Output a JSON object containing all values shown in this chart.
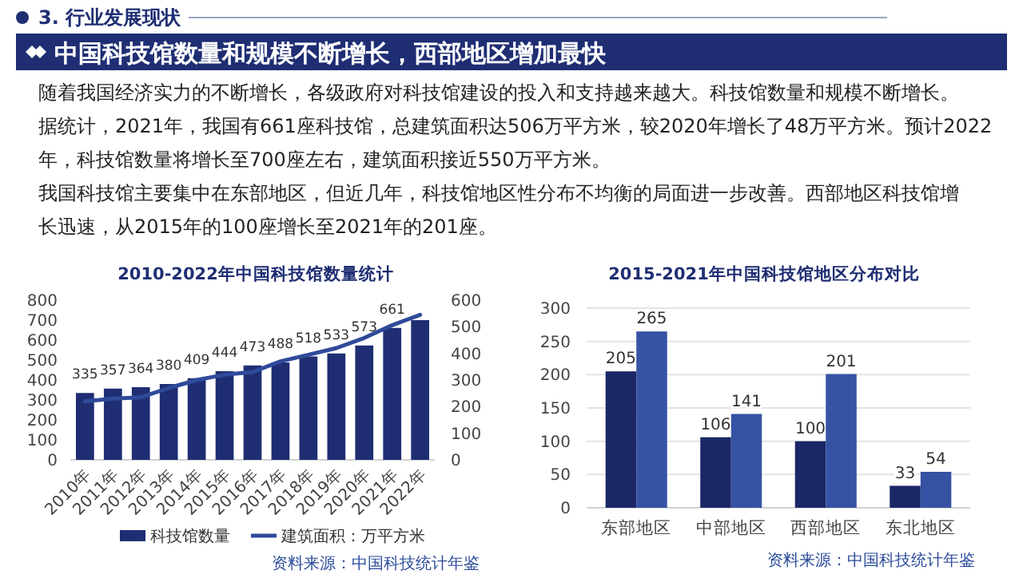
{
  "chart_data": [
    {
      "type": "other",
      "title": "中国科技馆数量和规模不断增长，西部地区增加最快",
      "annotations": [
        "3. 行业发展现状",
        "随着我国经济实力的不断增长，各级政府对科技馆建设的投入和支持越来越大。科技馆数量和规模不断增长。据统计，2021年，我国有661座科技馆，总建筑面积达506万平方米，较2020年增长了48万平方米。预计2022年，科技馆数量将增长至700座左右，建筑面积接近550万平方米。",
        "我国科技馆主要集中在东部地区，但近几年，科技馆地区性分布不均衡的局面进一步改善。西部地区科技馆增长迅速，从2015年的100座增长至2021年的201座。"
      ]
    },
    {
      "type": "bar",
      "title": "2010-2022年中国科技馆数量统计",
      "categories": [
        "2010年",
        "2011年",
        "2012年",
        "2013年",
        "2014年",
        "2015年",
        "2016年",
        "2017年",
        "2018年",
        "2019年",
        "2020年",
        "2021年",
        "2022年"
      ],
      "series": [
        {
          "name": "科技馆数量",
          "color": "#1f2e73",
          "values": [
            335,
            357,
            364,
            380,
            409,
            444,
            473,
            488,
            518,
            533,
            573,
            661,
            700
          ],
          "value_labels": [
            "335",
            "357",
            "364",
            "380",
            "409",
            "444",
            "473",
            "488",
            "518",
            "533",
            "573",
            "661",
            null
          ]
        },
        {
          "name": "建筑面积：万平方米",
          "type": "line",
          "axis": "y2",
          "color": "#2f4a9a",
          "values": [
            220,
            230,
            235,
            270,
            300,
            320,
            330,
            370,
            395,
            420,
            458,
            506,
            545
          ]
        }
      ],
      "ylim": [
        0,
        800
      ],
      "yticks": [
        0,
        100,
        200,
        300,
        400,
        500,
        600,
        700,
        800
      ],
      "y2lim": [
        0,
        600
      ],
      "y2ticks": [
        0,
        100,
        200,
        300,
        400,
        500,
        600
      ],
      "legend": "bottom",
      "annotations": [
        "资料来源：中国科技统计年鉴"
      ]
    },
    {
      "type": "bar",
      "title": "2015-2021年中国科技馆地区分布对比",
      "categories": [
        "东部地区",
        "中部地区",
        "西部地区",
        "东北地区"
      ],
      "series": [
        {
          "color": "#1b2766",
          "values": [
            205,
            106,
            100,
            33
          ]
        },
        {
          "color": "#3652a3",
          "values": [
            265,
            141,
            201,
            54
          ]
        }
      ],
      "ylim": [
        0,
        300
      ],
      "yticks": [
        0,
        50,
        100,
        150,
        200,
        250,
        300
      ],
      "grid": "y",
      "data_labels": true,
      "annotations": [
        "资料来源：中国科技统计年鉴"
      ]
    }
  ]
}
